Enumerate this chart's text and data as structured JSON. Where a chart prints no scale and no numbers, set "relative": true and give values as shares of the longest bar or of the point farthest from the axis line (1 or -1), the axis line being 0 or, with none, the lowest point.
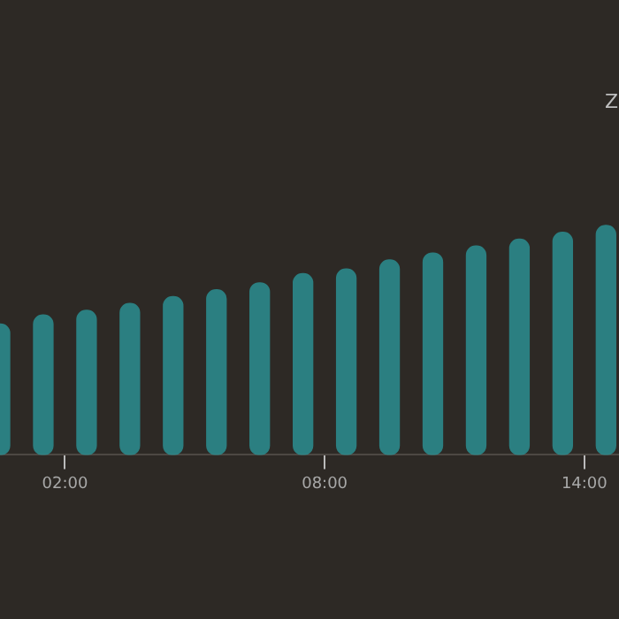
{
  "chart_data": {
    "type": "bar",
    "relative": true,
    "color": "#2b8d8f",
    "x": [
      0.5,
      1.5,
      2.5,
      3.5,
      4.5,
      5.5,
      6.5,
      7.5,
      8.5,
      9.5,
      10.5,
      11.5,
      12.5,
      13.5,
      14.5
    ],
    "values": [
      0.57,
      0.61,
      0.63,
      0.66,
      0.69,
      0.72,
      0.75,
      0.79,
      0.81,
      0.85,
      0.88,
      0.91,
      0.94,
      0.97,
      1.0
    ],
    "xlim": [
      0.5,
      14.8
    ],
    "xticks": [
      {
        "value": 2,
        "label": "02:00"
      },
      {
        "value": 8,
        "label": "08:00"
      },
      {
        "value": 14,
        "label": "14:00"
      }
    ],
    "annotations": [
      "Z"
    ],
    "legend": false
  }
}
